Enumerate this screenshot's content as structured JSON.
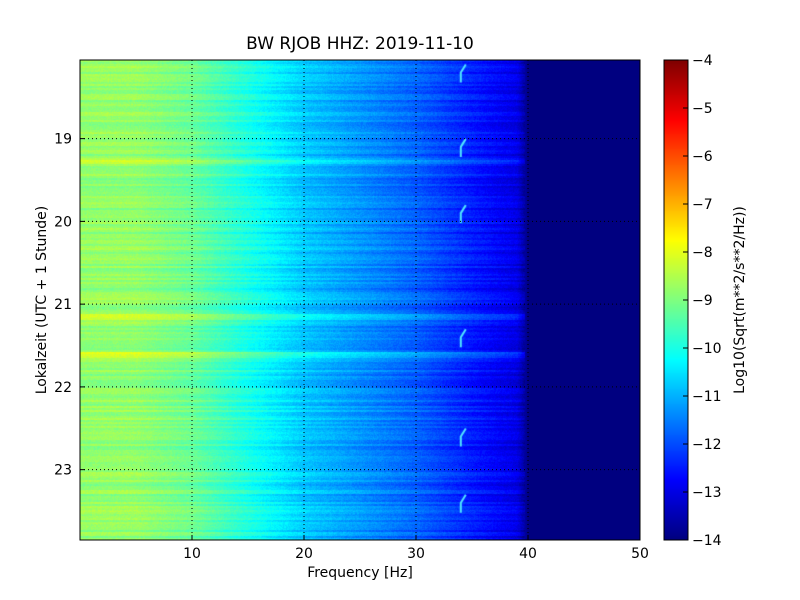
{
  "chart_data": {
    "type": "heatmap",
    "title": "BW RJOB HHZ: 2019-11-10",
    "xlabel": "Frequency [Hz]",
    "ylabel": "Lokalzeit (UTC + 1 Stunde)",
    "xlim": [
      0,
      50
    ],
    "ylim": [
      18.05,
      23.85
    ],
    "y_inverted": true,
    "x_ticks": [
      "10",
      "20",
      "30",
      "40",
      "50"
    ],
    "x_tick_values": [
      10,
      20,
      30,
      40,
      50
    ],
    "y_ticks": [
      "19",
      "20",
      "21",
      "22",
      "23"
    ],
    "y_tick_values": [
      19,
      20,
      21,
      22,
      23
    ],
    "grid": true,
    "colormap": "jet",
    "colorbar": {
      "label": "Log10(Sqrt(m**2/s**2/Hz))",
      "range": [
        -14,
        -4
      ],
      "ticks": [
        "−14",
        "−13",
        "−12",
        "−11",
        "−10",
        "−9",
        "−8",
        "−7",
        "−6",
        "−5",
        "−4"
      ],
      "tick_values": [
        -14,
        -13,
        -12,
        -11,
        -10,
        -9,
        -8,
        -7,
        -6,
        -5,
        -4
      ]
    },
    "spectrum_profile": {
      "frequency_hz": [
        0,
        5,
        10,
        15,
        20,
        25,
        30,
        35,
        39,
        40,
        50
      ],
      "value": [
        -8.8,
        -8.8,
        -9.2,
        -10.0,
        -10.8,
        -11.3,
        -11.8,
        -12.5,
        -13.0,
        -14.0,
        -14.0
      ]
    },
    "features": {
      "line_frequency_hz": 34,
      "line_times": [
        18.2,
        19.1,
        19.9,
        21.4,
        22.6,
        23.4
      ],
      "bright_bands": [
        21.15,
        21.6,
        19.25
      ]
    }
  }
}
